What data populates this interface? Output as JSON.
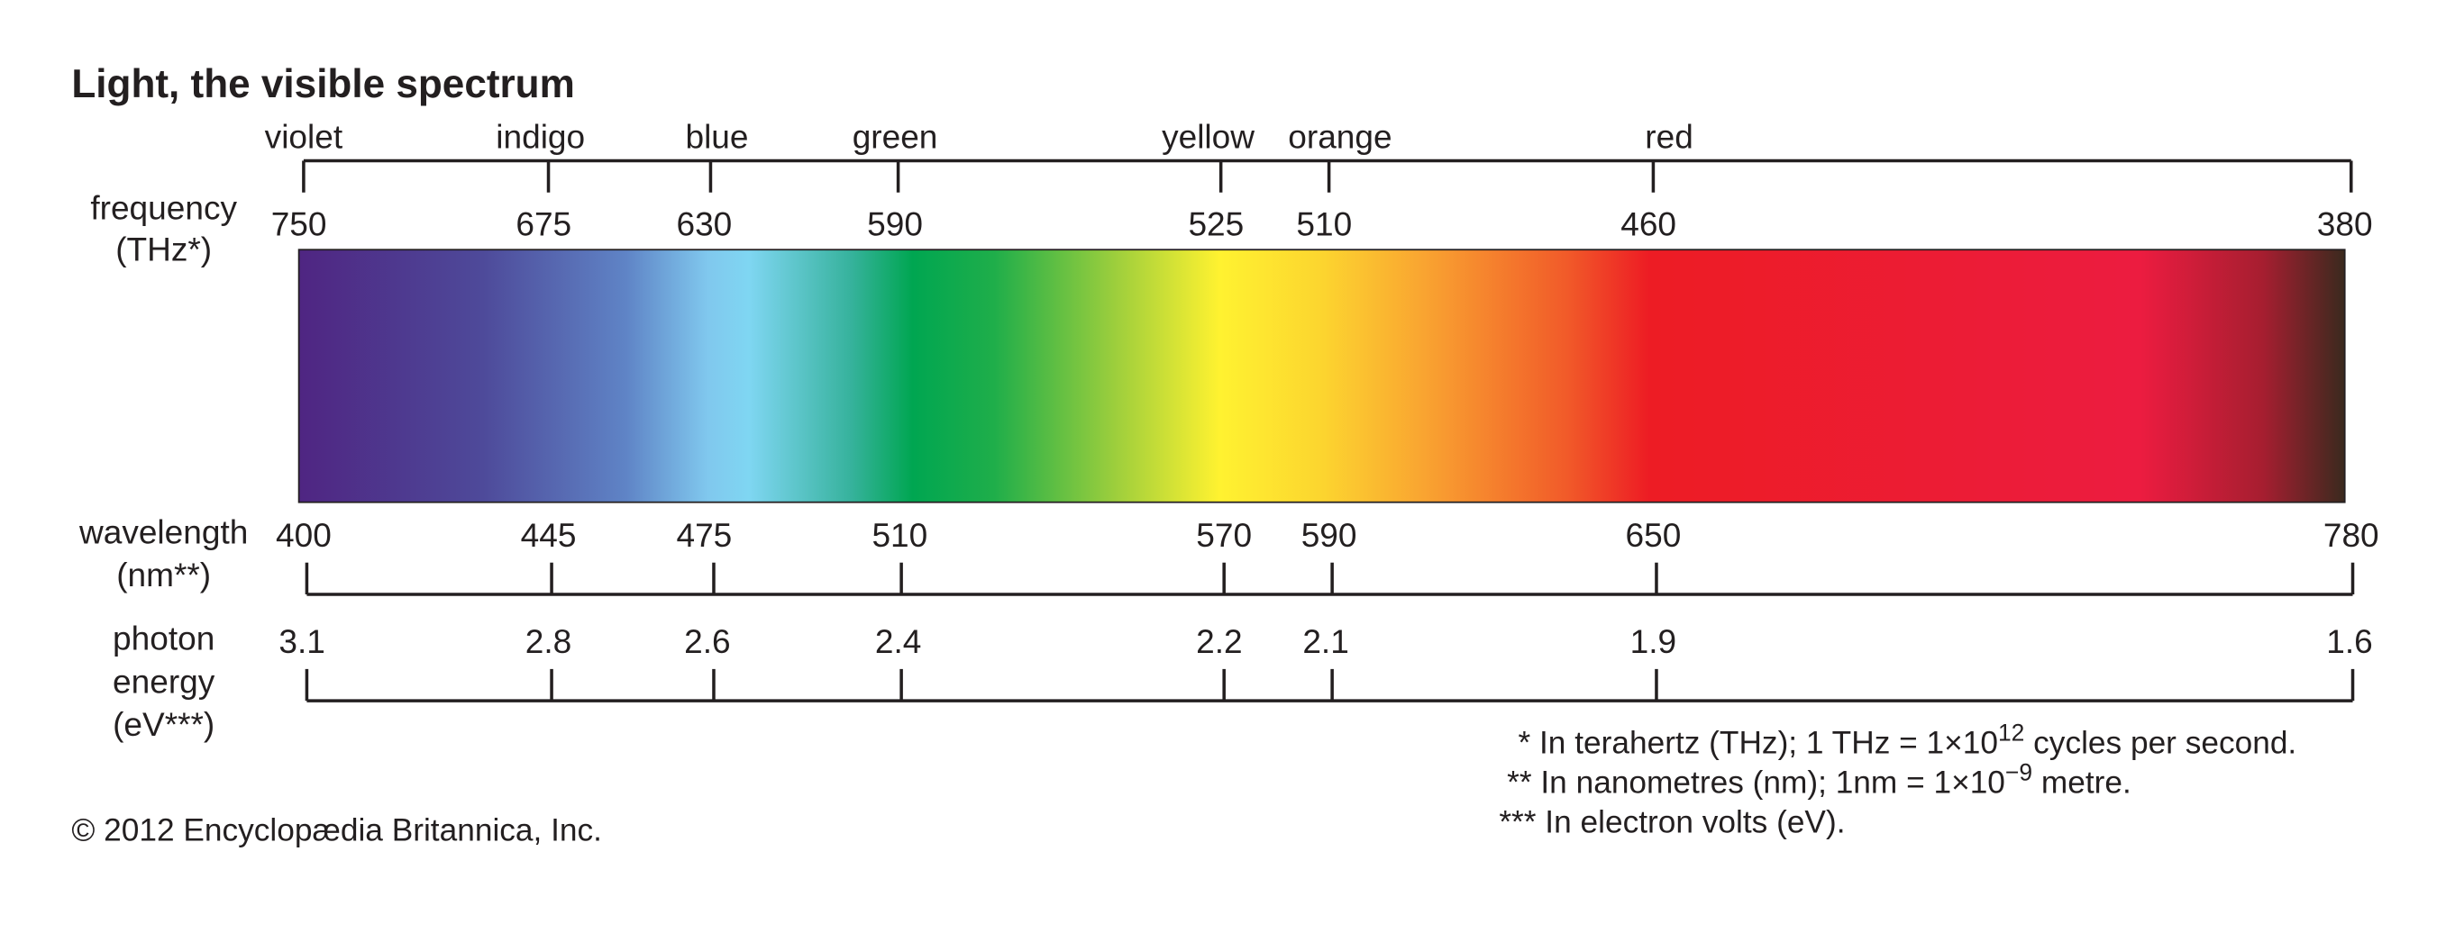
{
  "title": "Light, the visible spectrum",
  "color_names": [
    "violet",
    "indigo",
    "blue",
    "green",
    "yellow",
    "orange",
    "red"
  ],
  "scales": [
    {
      "label": [
        "frequency",
        "(THz*)"
      ],
      "ticks": [
        "750",
        "675",
        "630",
        "590",
        "525",
        "510",
        "460",
        "380"
      ]
    },
    {
      "label": [
        "wavelength",
        "(nm**)"
      ],
      "ticks": [
        "400",
        "445",
        "475",
        "510",
        "570",
        "590",
        "650",
        "780"
      ]
    },
    {
      "label": [
        "photon",
        "energy",
        "(eV***)"
      ],
      "ticks": [
        "3.1",
        "2.8",
        "2.6",
        "2.4",
        "2.2",
        "2.1",
        "1.9",
        "1.6"
      ]
    }
  ],
  "footnotes": [
    {
      "before": "* In terahertz (THz); 1 THz = 1×10",
      "sup": "12",
      "after": " cycles per second."
    },
    {
      "before": "** In nanometres (nm); 1nm = 1×10",
      "sup": "−9",
      "after": " metre."
    },
    {
      "before": "*** In electron volts (eV).",
      "sup": "",
      "after": ""
    }
  ],
  "copyright": "© 2012 Encyclopædia Britannica, Inc."
}
